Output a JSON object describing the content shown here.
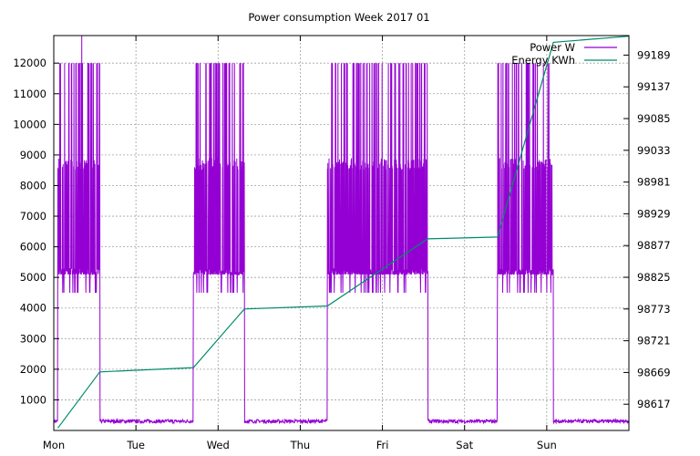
{
  "chart_data": {
    "type": "line",
    "title": "Power consumption Week 2017 01",
    "x_ticks": [
      "Mon",
      "Tue",
      "Wed",
      "Thu",
      "Fri",
      "Sat",
      "Sun"
    ],
    "y_ticks": [
      1000,
      2000,
      3000,
      4000,
      5000,
      6000,
      7000,
      8000,
      9000,
      10000,
      11000,
      12000
    ],
    "y2_ticks": [
      98617,
      98669,
      98721,
      98773,
      98825,
      98877,
      98929,
      98981,
      99033,
      99085,
      99137,
      99189
    ],
    "ylim": [
      0,
      12900
    ],
    "y2lim": [
      98574,
      99221
    ],
    "xlim_days": [
      0,
      7
    ],
    "grid": true,
    "legend_position": "top-right",
    "series": [
      {
        "name": "Power W",
        "axis": "left",
        "color": "#9400d3",
        "idle_level": 300,
        "active_periods_days": [
          [
            0.05,
            0.56
          ],
          [
            1.7,
            2.32
          ],
          [
            3.33,
            4.55
          ],
          [
            5.4,
            6.08
          ]
        ],
        "active_levels": [
          5100,
          8900,
          12000,
          4500
        ],
        "peak": 12900
      },
      {
        "name": "Energy KWh",
        "axis": "right",
        "color": "#008b6b",
        "x_days": [
          0.05,
          0.56,
          1.7,
          2.32,
          3.33,
          4.55,
          5.4,
          6.08,
          7.0
        ],
        "y": [
          98578,
          98670,
          98677,
          98773,
          98778,
          98888,
          98891,
          99210,
          99220
        ]
      }
    ]
  }
}
